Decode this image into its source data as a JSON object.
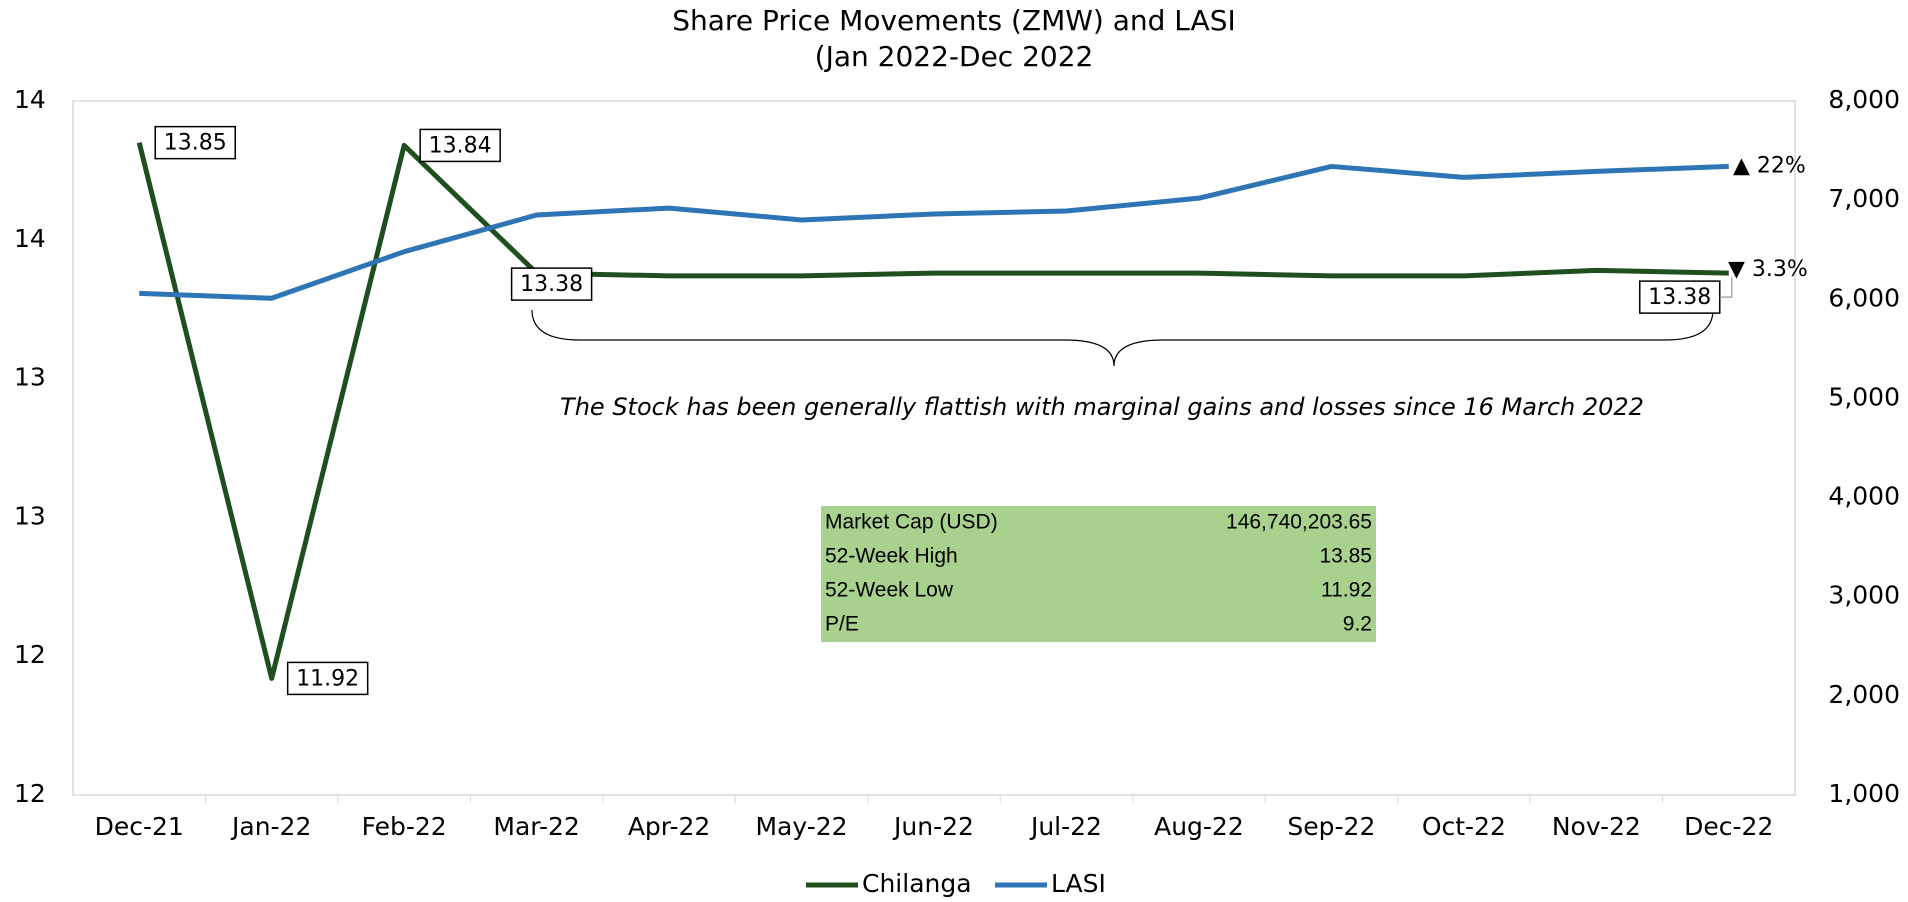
{
  "chart_data": {
    "type": "line",
    "title": [
      "Share Price Movements (ZMW) and LASI",
      "(Jan 2022-Dec 2022"
    ],
    "categories": [
      "Dec-21",
      "Jan-22",
      "Feb-22",
      "Mar-22",
      "Apr-22",
      "May-22",
      "Jun-22",
      "Jul-22",
      "Aug-22",
      "Sep-22",
      "Oct-22",
      "Nov-22",
      "Dec-22"
    ],
    "series": [
      {
        "name": "Chilanga",
        "color": "#1f4e1f",
        "axis": "y",
        "values": [
          13.85,
          11.92,
          13.84,
          13.38,
          13.37,
          13.37,
          13.38,
          13.38,
          13.38,
          13.37,
          13.37,
          13.39,
          13.38
        ],
        "value_labels": [
          "13.85",
          "11.92",
          "13.84",
          "13.38",
          null,
          null,
          null,
          null,
          null,
          null,
          null,
          null,
          "13.38"
        ]
      },
      {
        "name": "LASI",
        "color": "#2e75b6",
        "axis": "y2",
        "values": [
          6060,
          6010,
          6480,
          6850,
          6920,
          6800,
          6860,
          6890,
          7020,
          7340,
          7230,
          7290,
          7340
        ]
      }
    ],
    "ylim": [
      11.5,
      14
    ],
    "yticks": [
      {
        "value": 11.5,
        "label": "12"
      },
      {
        "value": 12,
        "label": "12"
      },
      {
        "value": 12.5,
        "label": "13"
      },
      {
        "value": 13,
        "label": "13"
      },
      {
        "value": 13.5,
        "label": "14"
      },
      {
        "value": 14,
        "label": "14"
      }
    ],
    "y2lim": [
      1000,
      8000
    ],
    "y2ticks": [
      {
        "value": 1000,
        "label": "1,000"
      },
      {
        "value": 2000,
        "label": "2,000"
      },
      {
        "value": 3000,
        "label": "3,000"
      },
      {
        "value": 4000,
        "label": "4,000"
      },
      {
        "value": 5000,
        "label": "5,000"
      },
      {
        "value": 6000,
        "label": "6,000"
      },
      {
        "value": 7000,
        "label": "7,000"
      },
      {
        "value": 8000,
        "label": "8,000"
      }
    ],
    "grid": false,
    "legend": "bottom",
    "annotations": [
      {
        "text": "▲ 22%",
        "color": "#1a7a1a"
      },
      {
        "text": "▼ 3.3%",
        "color": "#c00000"
      },
      {
        "text": "The Stock has been generally flattish with marginal gains and losses since 16 March 2022",
        "color": "#808080"
      }
    ],
    "table": [
      [
        "Market Cap (USD)",
        "146,740,203.65"
      ],
      [
        "52-Week High",
        "13.85"
      ],
      [
        "52-Week Low",
        "11.92"
      ],
      [
        "P/E",
        "9.2"
      ]
    ],
    "table_color": "#a9d18e"
  }
}
